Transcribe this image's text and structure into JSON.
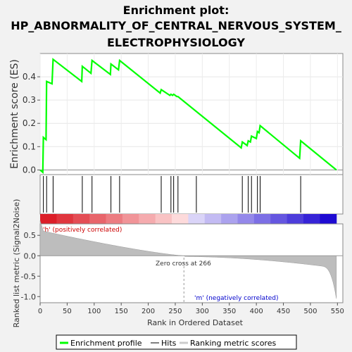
{
  "chart_data": {
    "type": "line",
    "title": "Enrichment plot:\nHP_ABNORMALITY_OF_CENTRAL_NERVOUS_SYSTEM_\nELECTROPHYSIOLOGY",
    "xlabel": "Rank in Ordered Dataset",
    "es_panel": {
      "ylabel": "Enrichment score (ES)",
      "ylim": [
        -0.02,
        0.5
      ],
      "yticks": [
        "0.0",
        "0.1",
        "0.2",
        "0.3",
        "0.4"
      ],
      "ytick_values": [
        0.0,
        0.1,
        0.2,
        0.3,
        0.4
      ],
      "series": {
        "name": "Enrichment profile",
        "color": "#00ff00",
        "points": [
          [
            0,
            0.0
          ],
          [
            5,
            -0.01
          ],
          [
            6,
            0.14
          ],
          [
            11,
            0.13
          ],
          [
            12,
            0.38
          ],
          [
            22,
            0.37
          ],
          [
            24,
            0.475
          ],
          [
            77,
            0.38
          ],
          [
            78,
            0.445
          ],
          [
            94,
            0.415
          ],
          [
            96,
            0.47
          ],
          [
            130,
            0.41
          ],
          [
            131,
            0.455
          ],
          [
            145,
            0.43
          ],
          [
            147,
            0.47
          ],
          [
            222,
            0.33
          ],
          [
            224,
            0.345
          ],
          [
            240,
            0.32
          ],
          [
            242,
            0.325
          ],
          [
            245,
            0.32
          ],
          [
            247,
            0.325
          ],
          [
            253,
            0.315
          ],
          [
            255,
            0.315
          ],
          [
            372,
            0.095
          ],
          [
            374,
            0.12
          ],
          [
            383,
            0.105
          ],
          [
            385,
            0.125
          ],
          [
            389,
            0.12
          ],
          [
            391,
            0.145
          ],
          [
            400,
            0.135
          ],
          [
            402,
            0.165
          ],
          [
            405,
            0.16
          ],
          [
            407,
            0.19
          ],
          [
            480,
            0.05
          ],
          [
            482,
            0.125
          ],
          [
            548,
            0.0
          ]
        ]
      }
    },
    "hits": {
      "name": "Hits",
      "positions": [
        6,
        12,
        24,
        78,
        96,
        131,
        147,
        224,
        242,
        247,
        255,
        289,
        374,
        385,
        391,
        402,
        407,
        482
      ]
    },
    "ranked_metric": {
      "name": "Ranking metric scores",
      "ylabel": "Ranked list metric (Signal2Noise)",
      "ylim": [
        -1.15,
        0.78
      ],
      "yticks": [
        "0.5",
        "0.0",
        "-0.5",
        "-1.0"
      ],
      "ytick_values": [
        0.5,
        0.0,
        -0.5,
        -1.0
      ],
      "n": 548,
      "zero_cross": 266,
      "zero_cross_label": "Zero cross at 266",
      "pos_label": "'h' (positively correlated)",
      "neg_label": "'m' (negatively correlated)"
    },
    "xlim": [
      0,
      560
    ],
    "xticks": [
      "0",
      "50",
      "100",
      "150",
      "200",
      "250",
      "300",
      "350",
      "400",
      "450",
      "500",
      "550"
    ],
    "xtick_values": [
      0,
      50,
      100,
      150,
      200,
      250,
      300,
      350,
      400,
      450,
      500,
      550
    ],
    "legend": {
      "placement": "bottom",
      "entries": [
        "Enrichment profile",
        "Hits",
        "Ranking metric scores"
      ]
    }
  }
}
